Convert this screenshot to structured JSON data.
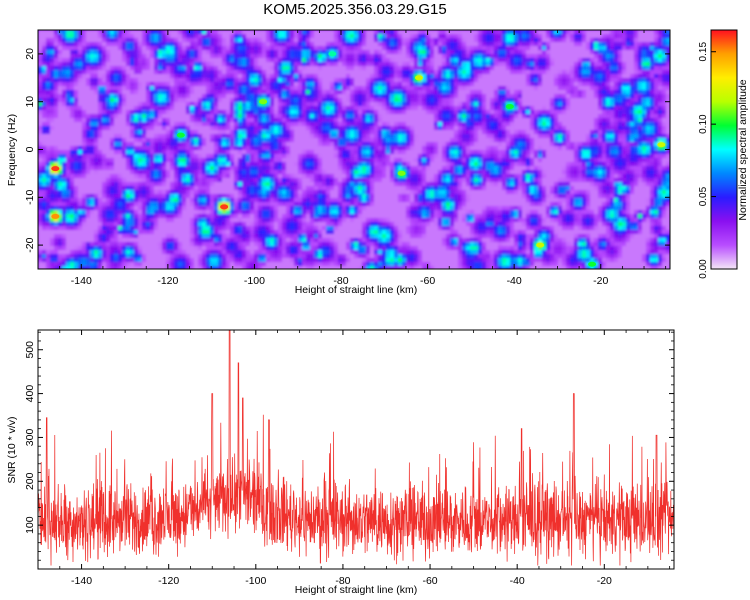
{
  "figure": {
    "title": "KOM5.2025.356.03.29.G15"
  },
  "chart_data": [
    {
      "type": "heatmap",
      "xlabel": "Height of straight line (km)",
      "ylabel": "Frequency (Hz)",
      "xlim": [
        -150,
        -4
      ],
      "ylim": [
        -25,
        25
      ],
      "xticks": [
        -140,
        -120,
        -100,
        -80,
        -60,
        -40,
        -20
      ],
      "yticks": [
        -20,
        -10,
        0,
        10,
        20
      ],
      "colorbar": {
        "label": "Normalized spectral amplitude",
        "range": [
          0.0,
          0.165
        ],
        "ticks": [
          "0.00",
          "0.05",
          "0.10",
          "0.15"
        ],
        "tick_values": [
          0.0,
          0.05,
          0.1,
          0.15
        ],
        "colors": [
          "#f4e6f7",
          "#b84dff",
          "#8a10f0",
          "#2a1cff",
          "#0088ff",
          "#00ffff",
          "#00ff33",
          "#b8ff00",
          "#ffee00",
          "#ffa000",
          "#ff1020"
        ]
      },
      "notable_peaks": [
        {
          "x": -146,
          "y": -4,
          "value": 0.16
        },
        {
          "x": -107,
          "y": -12,
          "value": 0.16
        },
        {
          "x": -146,
          "y": -14,
          "value": 0.15
        },
        {
          "x": -62,
          "y": 15,
          "value": 0.12
        },
        {
          "x": -98,
          "y": 10,
          "value": 0.11
        },
        {
          "x": -41,
          "y": 9,
          "value": 0.1
        },
        {
          "x": -6,
          "y": 1,
          "value": 0.12
        },
        {
          "x": -117,
          "y": 3,
          "value": 0.1
        },
        {
          "x": -34,
          "y": -20,
          "value": 0.12
        },
        {
          "x": -22,
          "y": -24,
          "value": 0.1
        },
        {
          "x": -82,
          "y": 20,
          "value": 0.09
        },
        {
          "x": -66,
          "y": -5,
          "value": 0.11
        }
      ]
    },
    {
      "type": "line",
      "xlabel": "Height of straight line (km)",
      "ylabel": "SNR (10 * v/v)",
      "xlim": [
        -150,
        -4
      ],
      "ylim": [
        0,
        545
      ],
      "xticks": [
        -140,
        -120,
        -100,
        -80,
        -60,
        -40,
        -20
      ],
      "yticks": [
        100,
        200,
        300,
        400,
        500
      ],
      "line_color": "#f0302c",
      "baseline_mean": 110,
      "notable_peaks": [
        {
          "x": -106,
          "y": 545
        },
        {
          "x": -104,
          "y": 470
        },
        {
          "x": -110,
          "y": 400
        },
        {
          "x": -103,
          "y": 390
        },
        {
          "x": -148,
          "y": 345
        },
        {
          "x": -97,
          "y": 340
        },
        {
          "x": -39,
          "y": 320
        },
        {
          "x": -27,
          "y": 400
        },
        {
          "x": -8,
          "y": 305
        }
      ]
    }
  ]
}
